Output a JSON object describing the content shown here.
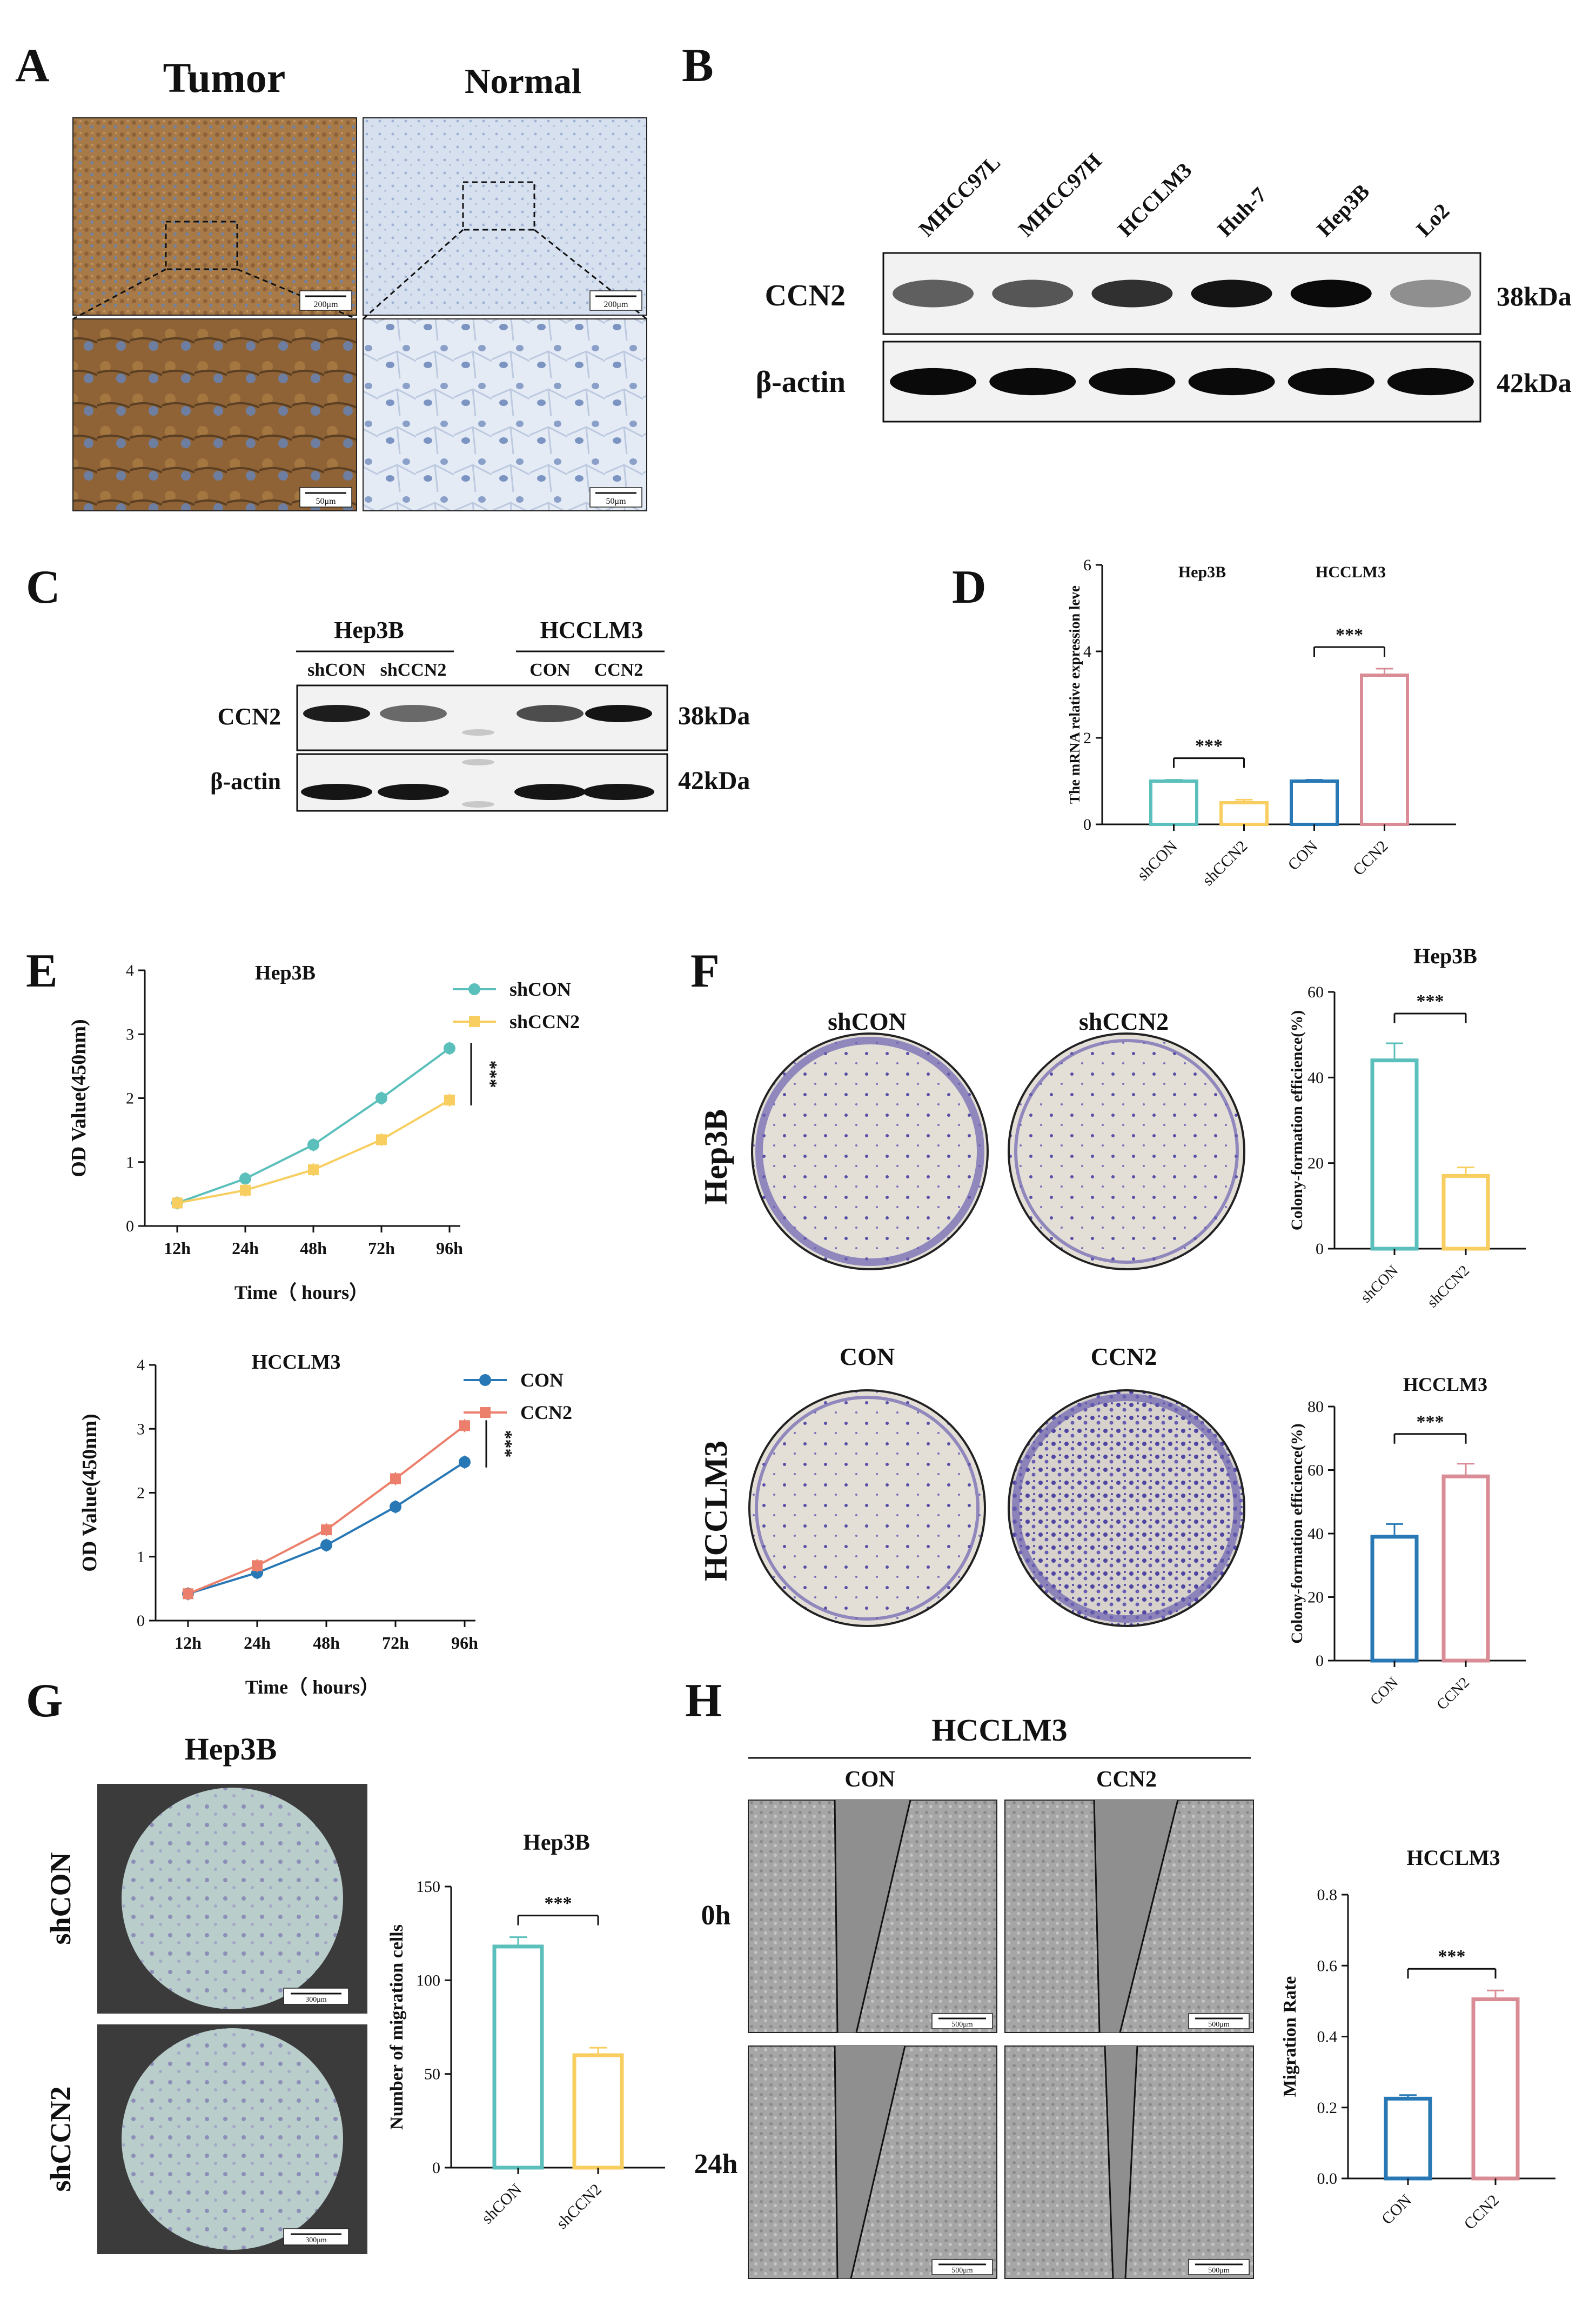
{
  "panel_labels": {
    "a": "A",
    "b": "B",
    "c": "C",
    "d": "D",
    "e": "E",
    "f": "F",
    "g": "G",
    "h": "H"
  },
  "panel_a": {
    "col_tumor": "Tumor",
    "col_normal": "Normal",
    "scale_top": "200μm",
    "scale_bottom": "50μm"
  },
  "panel_b": {
    "lanes": [
      "MHCC97L",
      "MHCC97H",
      "HCCLM3",
      "Huh-7",
      "Hep3B",
      "Lo2"
    ],
    "rows": [
      {
        "label": "CCN2",
        "size": "38kDa"
      },
      {
        "label": "β-actin",
        "size": "42kDa"
      }
    ],
    "ccn2_intensity": [
      0.55,
      0.6,
      0.8,
      0.95,
      1.0,
      0.3
    ]
  },
  "panel_c": {
    "groups": [
      "Hep3B",
      "HCCLM3"
    ],
    "lanes": [
      "shCON",
      "shCCN2",
      "CON",
      "CCN2"
    ],
    "rows": [
      {
        "label": "CCN2",
        "size": "38kDa"
      },
      {
        "label": "β-actin",
        "size": "42kDa"
      }
    ],
    "ccn2_intensity": [
      0.9,
      0.5,
      0.65,
      0.95
    ]
  },
  "panel_e": {
    "xlabel": "Time（ hours）",
    "ylabel": "OD Value(450nm)",
    "sig": "***"
  },
  "panel_f": {
    "dish_cols_top": [
      "shCON",
      "shCCN2"
    ],
    "dish_cols_bottom": [
      "CON",
      "CCN2"
    ],
    "dish_rows": [
      "Hep3B",
      "HCCLM3"
    ]
  },
  "panel_g": {
    "title": "Hep3B",
    "rows": [
      "shCON",
      "shCCN2"
    ],
    "scale": "300μm"
  },
  "panel_h": {
    "title": "HCCLM3",
    "cols": [
      "CON",
      "CCN2"
    ],
    "rows": [
      "0h",
      "24h"
    ],
    "scale": "500μm"
  },
  "colors": {
    "teal": "#5bbfbb",
    "yellow": "#f7ce5f",
    "blue": "#2878b5",
    "pink": "#d98c95",
    "salmon": "#ec7f6b",
    "stain": "#5a4fa8"
  },
  "chart_data": [
    {
      "id": "D",
      "type": "bar",
      "title": "",
      "group_labels": [
        "Hep3B",
        "HCCLM3"
      ],
      "ylabel": "The mRNA relative expression leve",
      "categories": [
        "shCON",
        "shCCN2",
        "CON",
        "CCN2"
      ],
      "values": [
        1.0,
        0.5,
        1.0,
        3.45
      ],
      "errors": [
        0.03,
        0.07,
        0.03,
        0.15
      ],
      "colors": [
        "#5bbfbb",
        "#f7ce5f",
        "#2878b5",
        "#d98c95"
      ],
      "ylim": [
        0,
        6
      ],
      "yticks": [
        "0",
        "2",
        "4",
        "6"
      ],
      "significance": [
        {
          "pair": [
            0,
            1
          ],
          "label": "***"
        },
        {
          "pair": [
            2,
            3
          ],
          "label": "***"
        }
      ]
    },
    {
      "id": "E1",
      "type": "line",
      "title": "Hep3B",
      "xlabel": "Time（ hours）",
      "ylabel": "OD Value(450nm)",
      "categories": [
        "12h",
        "24h",
        "48h",
        "72h",
        "96h"
      ],
      "ylim": [
        0,
        4
      ],
      "yticks": [
        "0",
        "1",
        "2",
        "3",
        "4"
      ],
      "series": [
        {
          "name": "shCON",
          "values": [
            0.36,
            0.74,
            1.27,
            2.0,
            2.78
          ],
          "color": "#5bbfbb",
          "marker": "circle"
        },
        {
          "name": "shCCN2",
          "values": [
            0.36,
            0.56,
            0.88,
            1.35,
            1.97
          ],
          "color": "#f7ce5f",
          "marker": "square"
        }
      ],
      "sig": "***"
    },
    {
      "id": "E2",
      "type": "line",
      "title": "HCCLM3",
      "xlabel": "Time（ hours）",
      "ylabel": "OD Value(450nm)",
      "categories": [
        "12h",
        "24h",
        "48h",
        "72h",
        "96h"
      ],
      "ylim": [
        0,
        4
      ],
      "yticks": [
        "0",
        "1",
        "2",
        "3",
        "4"
      ],
      "series": [
        {
          "name": "CON",
          "values": [
            0.42,
            0.75,
            1.18,
            1.78,
            2.48
          ],
          "color": "#2878b5",
          "marker": "circle"
        },
        {
          "name": "CCN2",
          "values": [
            0.42,
            0.86,
            1.42,
            2.22,
            3.05
          ],
          "color": "#ec7f6b",
          "marker": "square"
        }
      ],
      "sig": "***"
    },
    {
      "id": "F1",
      "type": "bar",
      "title": "Hep3B",
      "ylabel": "Colony-formation efficience(%)",
      "categories": [
        "shCON",
        "shCCN2"
      ],
      "values": [
        44,
        17
      ],
      "errors": [
        4,
        2
      ],
      "colors": [
        "#5bbfbb",
        "#f7ce5f"
      ],
      "ylim": [
        0,
        60
      ],
      "yticks": [
        "0",
        "20",
        "40",
        "60"
      ],
      "significance": [
        {
          "pair": [
            0,
            1
          ],
          "label": "***"
        }
      ]
    },
    {
      "id": "F2",
      "type": "bar",
      "title": "HCCLM3",
      "ylabel": "Colony-formation efficience(%)",
      "categories": [
        "CON",
        "CCN2"
      ],
      "values": [
        39,
        58
      ],
      "errors": [
        4,
        4
      ],
      "colors": [
        "#2878b5",
        "#d98c95"
      ],
      "ylim": [
        0,
        80
      ],
      "yticks": [
        "0",
        "20",
        "40",
        "60",
        "80"
      ],
      "significance": [
        {
          "pair": [
            0,
            1
          ],
          "label": "***"
        }
      ]
    },
    {
      "id": "G",
      "type": "bar",
      "title": "Hep3B",
      "ylabel": "Number of migration cells",
      "categories": [
        "shCON",
        "shCCN2"
      ],
      "values": [
        118,
        60
      ],
      "errors": [
        5,
        4
      ],
      "colors": [
        "#5bbfbb",
        "#f7ce5f"
      ],
      "ylim": [
        0,
        150
      ],
      "yticks": [
        "0",
        "50",
        "100",
        "150"
      ],
      "significance": [
        {
          "pair": [
            0,
            1
          ],
          "label": "***"
        }
      ]
    },
    {
      "id": "H",
      "type": "bar",
      "title": "HCCLM3",
      "ylabel": "Migration Rate",
      "categories": [
        "CON",
        "CCN2"
      ],
      "values": [
        0.225,
        0.505
      ],
      "errors": [
        0.01,
        0.025
      ],
      "colors": [
        "#2878b5",
        "#d98c95"
      ],
      "ylim": [
        0,
        0.8
      ],
      "yticks": [
        "0.0",
        "0.2",
        "0.4",
        "0.6",
        "0.8"
      ],
      "significance": [
        {
          "pair": [
            0,
            1
          ],
          "label": "***"
        }
      ]
    }
  ]
}
